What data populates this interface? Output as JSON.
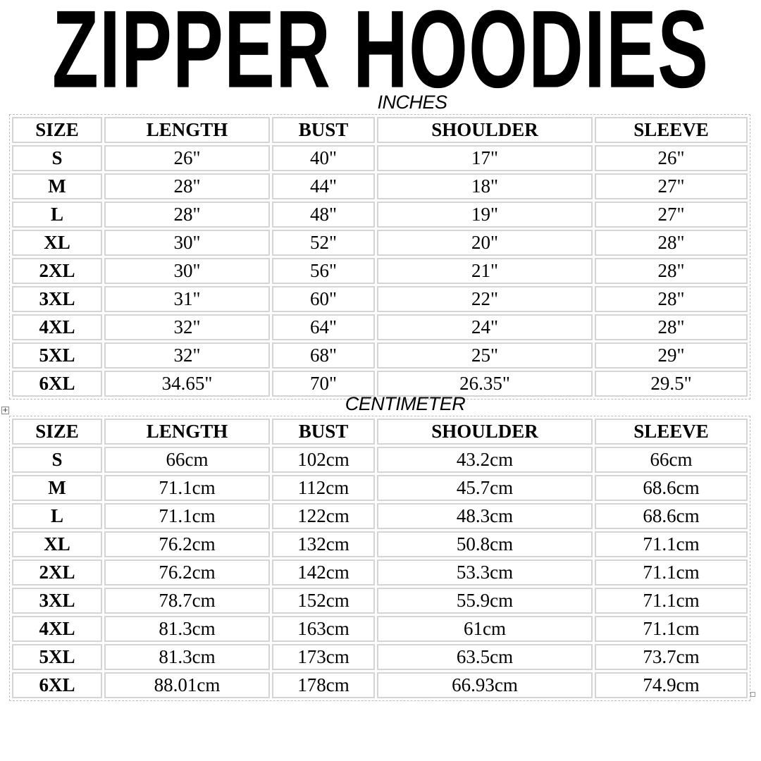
{
  "title": "ZIPPER HOODIES",
  "columns": [
    "SIZE",
    "LENGTH",
    "BUST",
    "SHOULDER",
    "SLEEVE"
  ],
  "tables": [
    {
      "unit": "INCHES",
      "rows": [
        [
          "S",
          "26\"",
          "40\"",
          "17\"",
          "26\""
        ],
        [
          "M",
          "28\"",
          "44\"",
          "18\"",
          "27\""
        ],
        [
          "L",
          "28\"",
          "48\"",
          "19\"",
          "27\""
        ],
        [
          "XL",
          "30\"",
          "52\"",
          "20\"",
          "28\""
        ],
        [
          "2XL",
          "30\"",
          "56\"",
          "21\"",
          "28\""
        ],
        [
          "3XL",
          "31\"",
          "60\"",
          "22\"",
          "28\""
        ],
        [
          "4XL",
          "32\"",
          "64\"",
          "24\"",
          "28\""
        ],
        [
          "5XL",
          "32\"",
          "68\"",
          "25\"",
          "29\""
        ],
        [
          "6XL",
          "34.65\"",
          "70\"",
          "26.35\"",
          "29.5\""
        ]
      ]
    },
    {
      "unit": "CENTIMETER",
      "rows": [
        [
          "S",
          "66cm",
          "102cm",
          "43.2cm",
          "66cm"
        ],
        [
          "M",
          "71.1cm",
          "112cm",
          "45.7cm",
          "68.6cm"
        ],
        [
          "L",
          "71.1cm",
          "122cm",
          "48.3cm",
          "68.6cm"
        ],
        [
          "XL",
          "76.2cm",
          "132cm",
          "50.8cm",
          "71.1cm"
        ],
        [
          "2XL",
          "76.2cm",
          "142cm",
          "53.3cm",
          "71.1cm"
        ],
        [
          "3XL",
          "78.7cm",
          "152cm",
          "55.9cm",
          "71.1cm"
        ],
        [
          "4XL",
          "81.3cm",
          "163cm",
          "61cm",
          "71.1cm"
        ],
        [
          "5XL",
          "81.3cm",
          "173cm",
          "63.5cm",
          "73.7cm"
        ],
        [
          "6XL",
          "88.01cm",
          "178cm",
          "66.93cm",
          "74.9cm"
        ]
      ]
    }
  ],
  "icons": {
    "table_move_handle": "plus-icon",
    "table_resize_handle": "square-icon"
  }
}
